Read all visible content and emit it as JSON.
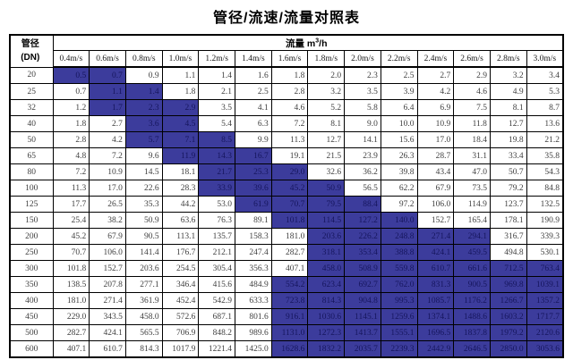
{
  "title": "管径/流速/流量对照表",
  "colors": {
    "highlight_background": "#3c3c9c",
    "highlight_text": "#16165e",
    "border": "#000000",
    "normal_text": "#3f3f3f"
  },
  "table": {
    "corner_header": {
      "line1": "管径",
      "line2": "(DN)"
    },
    "flow_header": {
      "label": "流量",
      "unit_base": " m",
      "unit_sup": "3",
      "unit_rest": "/h"
    },
    "velocity_headers": [
      "0.4m/s",
      "0.6m/s",
      "0.8m/s",
      "1.0m/s",
      "1.2m/s",
      "1.4m/s",
      "1.6m/s",
      "1.8m/s",
      "2.0m/s",
      "2.2m/s",
      "2.4m/s",
      "2.6m/s",
      "2.8m/s",
      "3.0m/s"
    ],
    "rows": [
      {
        "dn": "20",
        "values": [
          "0.5",
          "0.7",
          "0.9",
          "1.1",
          "1.4",
          "1.6",
          "1.8",
          "2.0",
          "2.3",
          "2.5",
          "2.7",
          "2.9",
          "3.2",
          "3.4"
        ],
        "highlight": [
          0,
          1
        ]
      },
      {
        "dn": "25",
        "values": [
          "0.7",
          "1.1",
          "1.4",
          "1.8",
          "2.1",
          "2.5",
          "2.8",
          "3.2",
          "3.5",
          "3.9",
          "4.2",
          "4.6",
          "4.9",
          "5.3"
        ],
        "highlight": [
          1,
          2
        ]
      },
      {
        "dn": "32",
        "values": [
          "1.2",
          "1.7",
          "2.3",
          "2.9",
          "3.5",
          "4.1",
          "4.6",
          "5.2",
          "5.8",
          "6.4",
          "6.9",
          "7.5",
          "8.1",
          "8.7"
        ],
        "highlight": [
          1,
          2,
          3
        ]
      },
      {
        "dn": "40",
        "values": [
          "1.8",
          "2.7",
          "3.6",
          "4.5",
          "5.4",
          "6.3",
          "7.2",
          "8.1",
          "9.0",
          "10.0",
          "10.9",
          "11.8",
          "12.7",
          "13.6"
        ],
        "highlight": [
          2,
          3
        ]
      },
      {
        "dn": "50",
        "values": [
          "2.8",
          "4.2",
          "5.7",
          "7.1",
          "8.5",
          "9.9",
          "11.3",
          "12.7",
          "14.1",
          "15.6",
          "17.0",
          "18.4",
          "19.8",
          "21.2"
        ],
        "highlight": [
          2,
          3,
          4
        ]
      },
      {
        "dn": "65",
        "values": [
          "4.8",
          "7.2",
          "9.6",
          "11.9",
          "14.3",
          "16.7",
          "19.1",
          "21.5",
          "23.9",
          "26.3",
          "28.7",
          "31.1",
          "33.4",
          "35.8"
        ],
        "highlight": [
          3,
          4,
          5
        ]
      },
      {
        "dn": "80",
        "values": [
          "7.2",
          "10.9",
          "14.5",
          "18.1",
          "21.7",
          "25.3",
          "29.0",
          "32.6",
          "36.2",
          "39.8",
          "43.4",
          "47.0",
          "50.7",
          "54.3"
        ],
        "highlight": [
          4,
          5,
          6
        ]
      },
      {
        "dn": "100",
        "values": [
          "11.3",
          "17.0",
          "22.6",
          "28.3",
          "33.9",
          "39.6",
          "45.2",
          "50.9",
          "56.5",
          "62.2",
          "67.9",
          "73.5",
          "79.2",
          "84.8"
        ],
        "highlight": [
          4,
          5,
          6,
          7
        ]
      },
      {
        "dn": "125",
        "values": [
          "17.7",
          "26.5",
          "35.3",
          "44.2",
          "53.0",
          "61.9",
          "70.7",
          "79.5",
          "88.4",
          "97.2",
          "106.0",
          "114.9",
          "123.7",
          "132.5"
        ],
        "highlight": [
          5,
          6,
          7,
          8
        ]
      },
      {
        "dn": "150",
        "values": [
          "25.4",
          "38.2",
          "50.9",
          "63.6",
          "76.3",
          "89.1",
          "101.8",
          "114.5",
          "127.2",
          "140.0",
          "152.7",
          "165.4",
          "178.1",
          "190.9"
        ],
        "highlight": [
          6,
          7,
          8,
          9
        ]
      },
      {
        "dn": "200",
        "values": [
          "45.2",
          "67.9",
          "90.5",
          "113.1",
          "135.7",
          "158.3",
          "181.0",
          "203.6",
          "226.2",
          "248.8",
          "271.4",
          "294.1",
          "316.7",
          "339.3"
        ],
        "highlight": [
          7,
          8,
          9,
          10,
          11
        ]
      },
      {
        "dn": "250",
        "values": [
          "70.7",
          "106.0",
          "141.4",
          "176.7",
          "212.1",
          "247.4",
          "282.7",
          "318.1",
          "353.4",
          "388.8",
          "424.1",
          "459.5",
          "494.8",
          "530.1"
        ],
        "highlight": [
          7,
          8,
          9,
          10,
          11
        ]
      },
      {
        "dn": "300",
        "values": [
          "101.8",
          "152.7",
          "203.6",
          "254.5",
          "305.4",
          "356.3",
          "407.1",
          "458.0",
          "508.9",
          "559.8",
          "610.7",
          "661.6",
          "712.5",
          "763.4"
        ],
        "highlight": [
          7,
          8,
          9,
          10,
          11,
          12,
          13
        ]
      },
      {
        "dn": "350",
        "values": [
          "138.5",
          "207.8",
          "277.1",
          "346.4",
          "415.6",
          "484.9",
          "554.2",
          "623.4",
          "692.7",
          "762.0",
          "831.3",
          "900.5",
          "969.8",
          "1039.1"
        ],
        "highlight": [
          6,
          7,
          8,
          9,
          10,
          11,
          12,
          13
        ]
      },
      {
        "dn": "400",
        "values": [
          "181.0",
          "271.4",
          "361.9",
          "452.4",
          "542.9",
          "633.3",
          "723.8",
          "814.3",
          "904.8",
          "995.3",
          "1085.7",
          "1176.2",
          "1266.7",
          "1357.2"
        ],
        "highlight": [
          6,
          7,
          8,
          9,
          10,
          11,
          12,
          13
        ]
      },
      {
        "dn": "450",
        "values": [
          "229.0",
          "343.5",
          "458.0",
          "572.6",
          "687.1",
          "801.6",
          "916.1",
          "1030.6",
          "1145.1",
          "1259.6",
          "1374.1",
          "1488.6",
          "1603.2",
          "1717.7"
        ],
        "highlight": [
          6,
          7,
          8,
          9,
          10,
          11,
          12,
          13
        ]
      },
      {
        "dn": "500",
        "values": [
          "282.7",
          "424.1",
          "565.5",
          "706.9",
          "848.2",
          "989.6",
          "1131.0",
          "1272.3",
          "1413.7",
          "1555.1",
          "1696.5",
          "1837.8",
          "1979.2",
          "2120.6"
        ],
        "highlight": [
          6,
          7,
          8,
          9,
          10,
          11,
          12,
          13
        ]
      },
      {
        "dn": "600",
        "values": [
          "407.1",
          "610.7",
          "814.3",
          "1017.9",
          "1221.4",
          "1425.0",
          "1628.6",
          "1832.2",
          "2035.7",
          "2239.3",
          "2442.9",
          "2646.5",
          "2850.0",
          "3053.6"
        ],
        "highlight": [
          6,
          7,
          8,
          9,
          10,
          11,
          12,
          13
        ]
      }
    ]
  }
}
